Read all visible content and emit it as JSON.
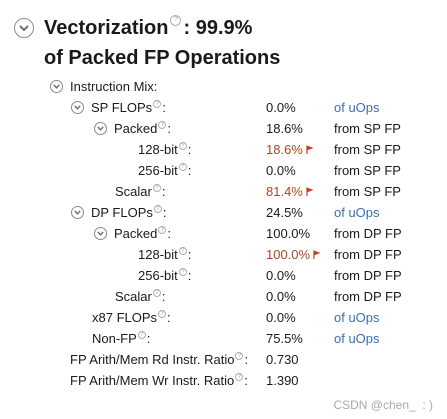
{
  "header": {
    "title_part1": "Vectorization",
    "title_part2": ": 99.9%",
    "subtitle": "of Packed FP Operations",
    "help_glyph": "?",
    "toggle_icon": "chevron-down-icon"
  },
  "accent_colors": {
    "link": "#3a6fb5",
    "warning_value": "#b3441e",
    "flag": "#c0411c"
  },
  "metrics": [
    {
      "id": "instruction-mix",
      "label": "Instruction Mix:",
      "value": "",
      "basis": "",
      "toggle": true,
      "help": false,
      "hot": false,
      "link": false
    },
    {
      "id": "sp-flops",
      "label": "SP FLOPs",
      "value": "0.0%",
      "basis": "of uOps",
      "toggle": true,
      "help": true,
      "hot": false,
      "link": true
    },
    {
      "id": "sp-packed",
      "label": "Packed",
      "value": "18.6%",
      "basis": "from SP FP",
      "toggle": true,
      "help": true,
      "hot": false,
      "link": false
    },
    {
      "id": "sp-128",
      "label": "128-bit",
      "value": "18.6%",
      "basis": "from SP FP",
      "toggle": false,
      "help": true,
      "hot": true,
      "link": false
    },
    {
      "id": "sp-256",
      "label": "256-bit",
      "value": "0.0%",
      "basis": "from SP FP",
      "toggle": false,
      "help": true,
      "hot": false,
      "link": false
    },
    {
      "id": "sp-scalar",
      "label": "Scalar",
      "value": "81.4%",
      "basis": "from SP FP",
      "toggle": false,
      "help": true,
      "hot": true,
      "link": false
    },
    {
      "id": "dp-flops",
      "label": "DP FLOPs",
      "value": "24.5%",
      "basis": "of uOps",
      "toggle": true,
      "help": true,
      "hot": false,
      "link": true
    },
    {
      "id": "dp-packed",
      "label": "Packed",
      "value": "100.0%",
      "basis": "from DP FP",
      "toggle": true,
      "help": true,
      "hot": false,
      "link": false
    },
    {
      "id": "dp-128",
      "label": "128-bit",
      "value": "100.0%",
      "basis": "from DP FP",
      "toggle": false,
      "help": true,
      "hot": true,
      "link": false
    },
    {
      "id": "dp-256",
      "label": "256-bit",
      "value": "0.0%",
      "basis": "from DP FP",
      "toggle": false,
      "help": true,
      "hot": false,
      "link": false
    },
    {
      "id": "dp-scalar",
      "label": "Scalar",
      "value": "0.0%",
      "basis": "from DP FP",
      "toggle": false,
      "help": true,
      "hot": false,
      "link": false
    },
    {
      "id": "x87-flops",
      "label": "x87 FLOPs",
      "value": "0.0%",
      "basis": "of uOps",
      "toggle": false,
      "help": true,
      "hot": false,
      "link": true
    },
    {
      "id": "non-fp",
      "label": "Non-FP",
      "value": "75.5%",
      "basis": "of uOps",
      "toggle": false,
      "help": true,
      "hot": false,
      "link": true
    },
    {
      "id": "rd-ratio",
      "label": "FP Arith/Mem Rd Instr. Ratio",
      "value": "0.730",
      "basis": "",
      "toggle": false,
      "help": true,
      "hot": false,
      "link": false
    },
    {
      "id": "wr-ratio",
      "label": "FP Arith/Mem Wr Instr. Ratio",
      "value": "1.390",
      "basis": "",
      "toggle": false,
      "help": true,
      "hot": false,
      "link": false
    }
  ],
  "watermark": "CSDN @chen_  : )"
}
